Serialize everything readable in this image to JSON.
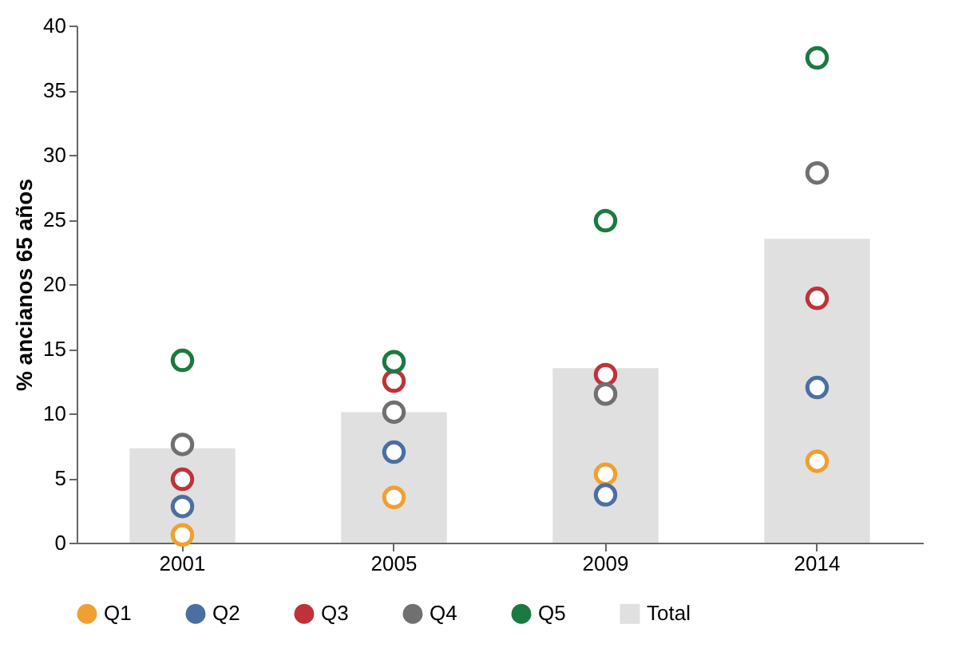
{
  "chart_data": {
    "type": "bar",
    "ylabel": "% ancianos 65 años",
    "categories": [
      "2001",
      "2005",
      "2009",
      "2014"
    ],
    "ylim": [
      0,
      40
    ],
    "yticks": [
      0,
      5,
      10,
      15,
      20,
      25,
      30,
      35,
      40
    ],
    "grid": false,
    "legend": "bottom",
    "marker": "circle",
    "series": [
      {
        "name": "Q1",
        "type": "scatter",
        "color": "#f0a030",
        "values": [
          0.6,
          3.5,
          5.3,
          6.3
        ]
      },
      {
        "name": "Q2",
        "type": "scatter",
        "color": "#4a6fa0",
        "values": [
          2.8,
          7.0,
          3.7,
          12.0
        ]
      },
      {
        "name": "Q3",
        "type": "scatter",
        "color": "#c0323a",
        "values": [
          4.9,
          12.5,
          13.0,
          18.9
        ]
      },
      {
        "name": "Q4",
        "type": "scatter",
        "color": "#707070",
        "values": [
          7.6,
          10.1,
          11.5,
          28.6
        ]
      },
      {
        "name": "Q5",
        "type": "scatter",
        "color": "#1a7a40",
        "values": [
          14.1,
          14.0,
          24.9,
          37.5
        ]
      },
      {
        "name": "Total",
        "color": "#e0e0e0",
        "values": [
          7.3,
          10.1,
          13.5,
          23.5
        ]
      }
    ]
  }
}
